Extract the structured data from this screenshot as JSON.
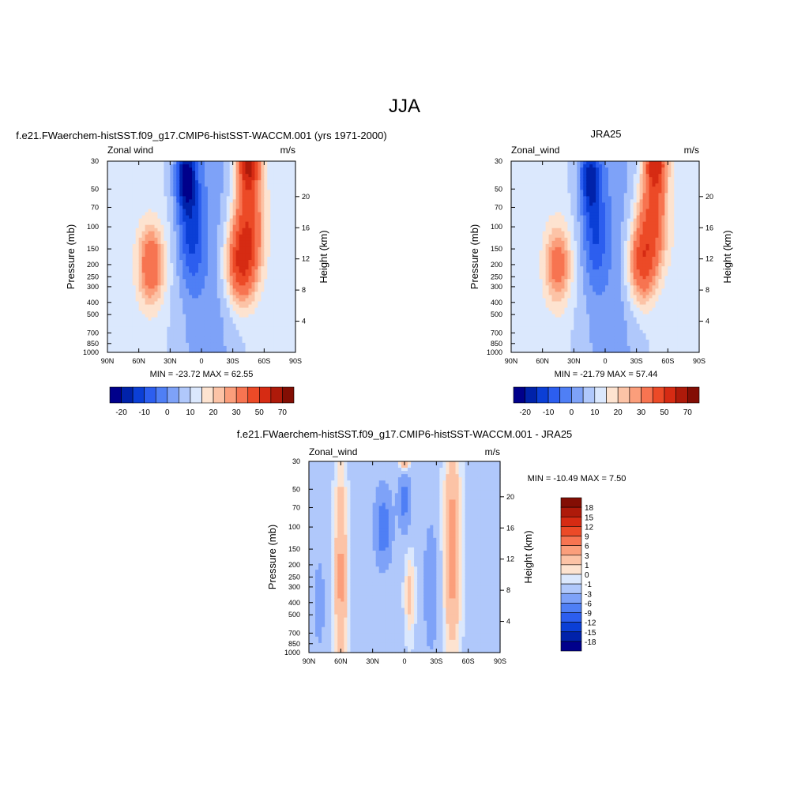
{
  "page_title": "JJA",
  "colors": {
    "cbar_left": [
      "#00008b",
      "#0022aa",
      "#0b3fd6",
      "#2c5eef",
      "#4f7ff5",
      "#7ea2f8",
      "#b0c8fb",
      "#dbe8fd",
      "#fde3d0",
      "#fcc3a6",
      "#fb9e7b",
      "#f77451",
      "#ec4a27",
      "#d62b13",
      "#ae1a0a",
      "#830e04"
    ],
    "cbar_diff": [
      "#00008b",
      "#0022aa",
      "#0b3fd6",
      "#2c5eef",
      "#4f7ff5",
      "#7ea2f8",
      "#b0c8fb",
      "#dbe8fd",
      "#fde3d0",
      "#fcc3a6",
      "#fb9e7b",
      "#f77451",
      "#ec4a27",
      "#d62b13",
      "#ae1a0a",
      "#830e04"
    ]
  },
  "chart_data": [
    {
      "type": "heatmap",
      "id": "model",
      "title": "f.e21.FWaerchem-histSST.f09_g17.CMIP6-histSST-WACCM.001 (yrs 1971-2000)",
      "left_label": "Zonal wind",
      "right_label": "m/s",
      "ylabel": "Pressure (mb)",
      "ylabel_right": "Height (km)",
      "x_ticks": [
        "90N",
        "60N",
        "30N",
        "0",
        "30S",
        "60S",
        "90S"
      ],
      "x_values": [
        90,
        60,
        30,
        0,
        -30,
        -60,
        -90
      ],
      "xlim": [
        90,
        -90
      ],
      "y_ticks": [
        "30",
        "50",
        "70",
        "100",
        "150",
        "200",
        "250",
        "300",
        "400",
        "500",
        "700",
        "850",
        "1000"
      ],
      "y_values": [
        30,
        50,
        70,
        100,
        150,
        200,
        250,
        300,
        400,
        500,
        700,
        850,
        1000
      ],
      "ylim": [
        30,
        1000
      ],
      "y_scale": "log",
      "height_ticks": [
        "20",
        "16",
        "12",
        "8",
        "4"
      ],
      "height_values": [
        20,
        16,
        12,
        8,
        4
      ],
      "minmax_text": "MIN = -23.72  MAX =  62.55",
      "min": -23.72,
      "max": 62.55,
      "colorbar": {
        "orientation": "horizontal",
        "levels": [
          -20,
          -15,
          -10,
          -5,
          0,
          5,
          10,
          15,
          20,
          25,
          30,
          40,
          50,
          60,
          70
        ],
        "labels": [
          "-20",
          "-10",
          "0",
          "10",
          "20",
          "30",
          "50",
          "70"
        ]
      },
      "features": [
        {
          "lat": -45,
          "p": 30,
          "value": 50,
          "rlat": 10,
          "rlogp": 0.25
        },
        {
          "lat": -38,
          "p": 200,
          "value": 38,
          "rlat": 14,
          "rlogp": 0.3
        },
        {
          "lat": -45,
          "p": 90,
          "value": 30,
          "rlat": 14,
          "rlogp": 0.35
        },
        {
          "lat": 15,
          "p": 40,
          "value": -28,
          "rlat": 10,
          "rlogp": 0.28
        },
        {
          "lat": 10,
          "p": 120,
          "value": -16,
          "rlat": 12,
          "rlogp": 0.4
        },
        {
          "lat": 48,
          "p": 200,
          "value": 28,
          "rlat": 12,
          "rlogp": 0.3
        }
      ]
    },
    {
      "type": "heatmap",
      "id": "obs",
      "title": "JRA25",
      "left_label": "Zonal_wind",
      "right_label": "m/s",
      "ylabel": "Pressure (mb)",
      "ylabel_right": "Height (km)",
      "x_ticks": [
        "90N",
        "60N",
        "30N",
        "0",
        "30S",
        "60S",
        "90S"
      ],
      "x_values": [
        90,
        60,
        30,
        0,
        -30,
        -60,
        -90
      ],
      "xlim": [
        90,
        -90
      ],
      "y_ticks": [
        "30",
        "50",
        "70",
        "100",
        "150",
        "200",
        "250",
        "300",
        "400",
        "500",
        "700",
        "850",
        "1000"
      ],
      "y_values": [
        30,
        50,
        70,
        100,
        150,
        200,
        250,
        300,
        400,
        500,
        700,
        850,
        1000
      ],
      "ylim": [
        30,
        1000
      ],
      "y_scale": "log",
      "height_ticks": [
        "20",
        "16",
        "12",
        "8",
        "4"
      ],
      "height_values": [
        20,
        16,
        12,
        8,
        4
      ],
      "minmax_text": "MIN = -21.79  MAX =  57.44",
      "min": -21.79,
      "max": 57.44,
      "colorbar": {
        "orientation": "horizontal",
        "levels": [
          -20,
          -15,
          -10,
          -5,
          0,
          5,
          10,
          15,
          20,
          25,
          30,
          40,
          50,
          60,
          70
        ],
        "labels": [
          "-20",
          "-10",
          "0",
          "10",
          "20",
          "30",
          "50",
          "70"
        ]
      },
      "features": [
        {
          "lat": -48,
          "p": 30,
          "value": 45,
          "rlat": 10,
          "rlogp": 0.25
        },
        {
          "lat": -35,
          "p": 200,
          "value": 32,
          "rlat": 13,
          "rlogp": 0.3
        },
        {
          "lat": -45,
          "p": 90,
          "value": 30,
          "rlat": 14,
          "rlogp": 0.35
        },
        {
          "lat": 15,
          "p": 40,
          "value": -22,
          "rlat": 10,
          "rlogp": 0.28
        },
        {
          "lat": 10,
          "p": 120,
          "value": -14,
          "rlat": 12,
          "rlogp": 0.4
        },
        {
          "lat": 45,
          "p": 200,
          "value": 24,
          "rlat": 12,
          "rlogp": 0.3
        }
      ]
    },
    {
      "type": "heatmap",
      "id": "diff",
      "title": "f.e21.FWaerchem-histSST.f09_g17.CMIP6-histSST-WACCM.001 - JRA25",
      "left_label": "Zonal_wind",
      "right_label": "m/s",
      "ylabel": "Pressure (mb)",
      "ylabel_right": "Height (km)",
      "x_ticks": [
        "90N",
        "60N",
        "30N",
        "0",
        "30S",
        "60S",
        "90S"
      ],
      "x_values": [
        90,
        60,
        30,
        0,
        -30,
        -60,
        -90
      ],
      "xlim": [
        90,
        -90
      ],
      "y_ticks": [
        "30",
        "50",
        "70",
        "100",
        "150",
        "200",
        "250",
        "300",
        "400",
        "500",
        "700",
        "850",
        "1000"
      ],
      "y_values": [
        30,
        50,
        70,
        100,
        150,
        200,
        250,
        300,
        400,
        500,
        700,
        850,
        1000
      ],
      "ylim": [
        30,
        1000
      ],
      "y_scale": "log",
      "height_ticks": [
        "20",
        "16",
        "12",
        "8",
        "4"
      ],
      "height_values": [
        20,
        16,
        12,
        8,
        4
      ],
      "minmax_text": "MIN = -10.49  MAX =   7.50",
      "min": -10.49,
      "max": 7.5,
      "colorbar": {
        "orientation": "vertical",
        "levels": [
          -18,
          -15,
          -12,
          -9,
          -6,
          -3,
          -1,
          0,
          1,
          3,
          6,
          9,
          12,
          15,
          18
        ],
        "labels": [
          "18",
          "15",
          "12",
          "9",
          "6",
          "3",
          "1",
          "0",
          "-1",
          "-3",
          "-6",
          "-9",
          "-12",
          "-15",
          "-18"
        ]
      },
      "features": [
        {
          "lat": 60,
          "p": 250,
          "value": 5,
          "rlat": 6,
          "rlogp": 0.9
        },
        {
          "lat": -45,
          "p": 150,
          "value": 6,
          "rlat": 8,
          "rlogp": 0.8
        },
        {
          "lat": 20,
          "p": 100,
          "value": -7,
          "rlat": 8,
          "rlogp": 0.3
        },
        {
          "lat": 0,
          "p": 60,
          "value": -6,
          "rlat": 6,
          "rlogp": 0.25
        },
        {
          "lat": 0,
          "p": 30,
          "value": 6,
          "rlat": 5,
          "rlogp": 0.1
        },
        {
          "lat": -5,
          "p": 350,
          "value": 3,
          "rlat": 5,
          "rlogp": 0.35
        },
        {
          "lat": -25,
          "p": 300,
          "value": -3,
          "rlat": 8,
          "rlogp": 0.6
        },
        {
          "lat": 80,
          "p": 400,
          "value": -2,
          "rlat": 8,
          "rlogp": 0.6
        }
      ]
    }
  ]
}
